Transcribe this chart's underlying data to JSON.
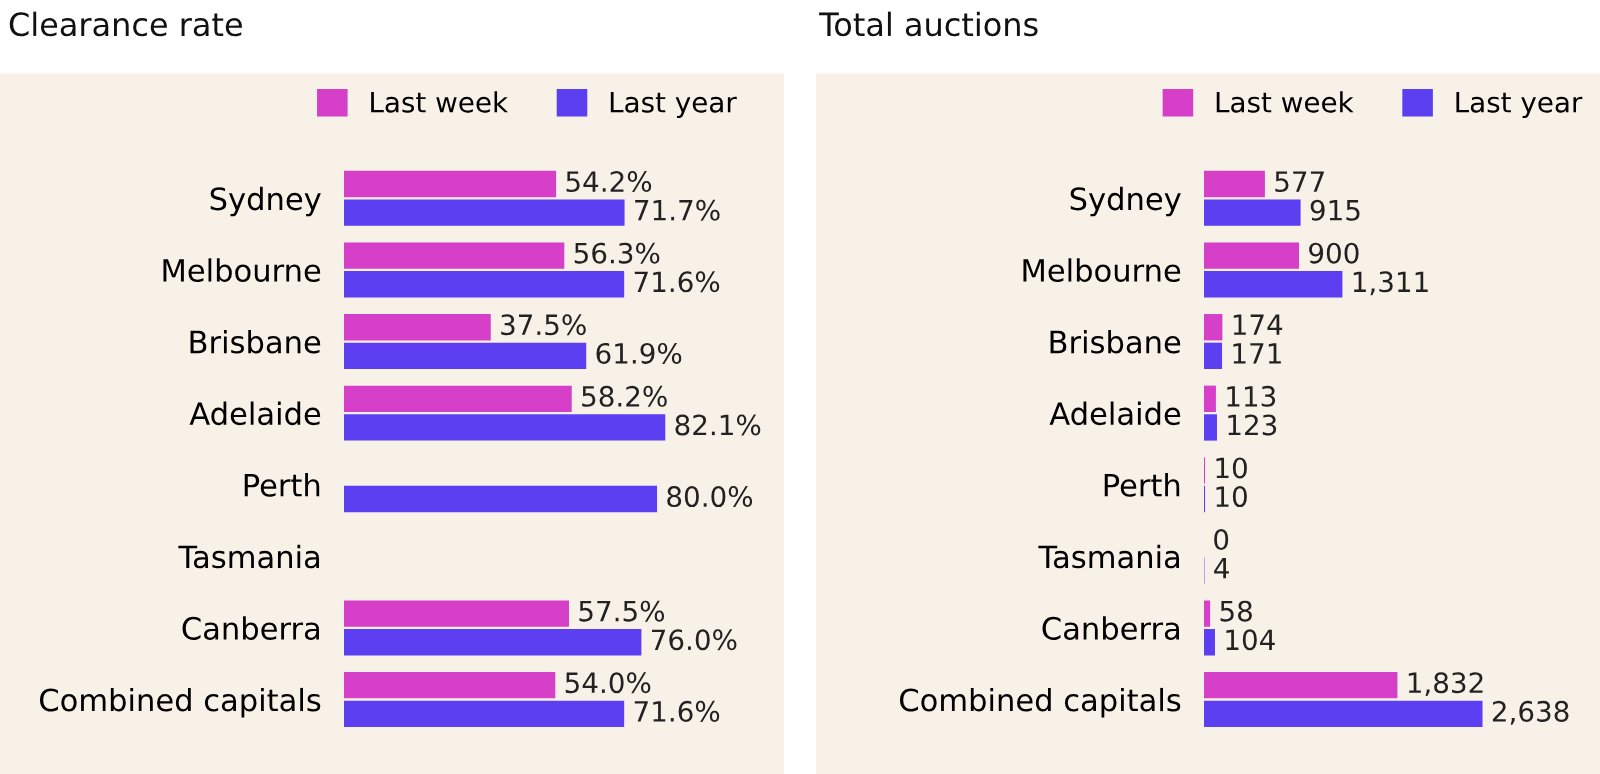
{
  "chart_data": [
    {
      "type": "bar",
      "orientation": "horizontal",
      "title": "Clearance rate",
      "legend": "top",
      "categories": [
        "Sydney",
        "Melbourne",
        "Brisbane",
        "Adelaide",
        "Perth",
        "Tasmania",
        "Canberra",
        "Combined capitals"
      ],
      "series": [
        {
          "name": "Last week",
          "color": "#d63fc8",
          "values": [
            54.2,
            56.3,
            37.5,
            58.2,
            null,
            null,
            57.5,
            54.0
          ],
          "value_labels": [
            "54.2%",
            "56.3%",
            "37.5%",
            "58.2%",
            null,
            null,
            "57.5%",
            "54.0%"
          ]
        },
        {
          "name": "Last year",
          "color": "#5b3ff0",
          "values": [
            71.7,
            71.6,
            61.9,
            82.1,
            80.0,
            null,
            76.0,
            71.6
          ],
          "value_labels": [
            "71.7%",
            "71.6%",
            "61.9%",
            "82.1%",
            "80.0%",
            null,
            "76.0%",
            "71.6%"
          ]
        }
      ]
    },
    {
      "type": "bar",
      "orientation": "horizontal",
      "title": "Total auctions",
      "legend": "top",
      "categories": [
        "Sydney",
        "Melbourne",
        "Brisbane",
        "Adelaide",
        "Perth",
        "Tasmania",
        "Canberra",
        "Combined capitals"
      ],
      "series": [
        {
          "name": "Last week",
          "color": "#d63fc8",
          "values": [
            577,
            900,
            174,
            113,
            10,
            0,
            58,
            1832
          ],
          "value_labels": [
            "577",
            "900",
            "174",
            "113",
            "10",
            "0",
            "58",
            "1,832"
          ]
        },
        {
          "name": "Last year",
          "color": "#5b3ff0",
          "values": [
            915,
            1311,
            171,
            123,
            10,
            4,
            104,
            2638
          ],
          "value_labels": [
            "915",
            "1,311",
            "171",
            "123",
            "10",
            "4",
            "104",
            "2,638"
          ]
        }
      ]
    }
  ]
}
